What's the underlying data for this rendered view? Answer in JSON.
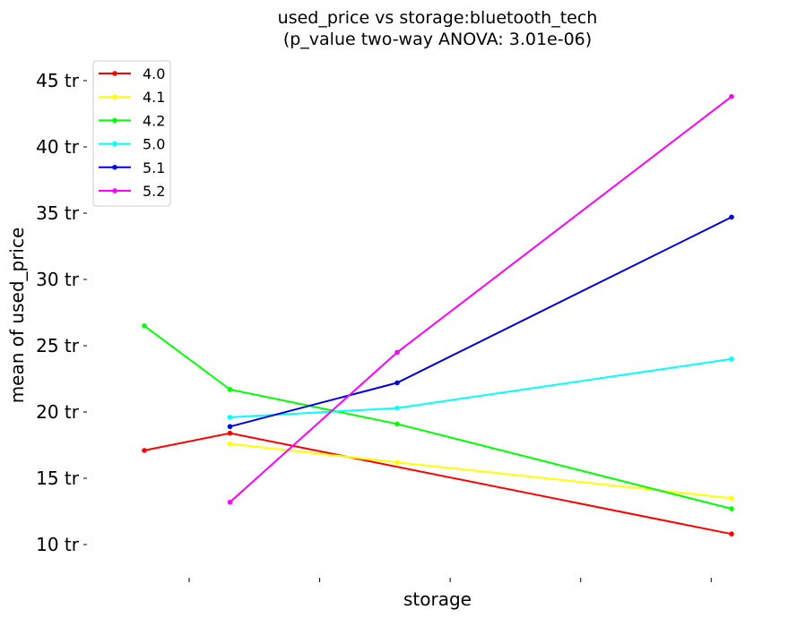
{
  "chart_data": {
    "type": "line",
    "title_line1": "used_price vs storage:bluetooth_tech",
    "title_line2": "(p_value two-way ANOVA: 3.01e-06)",
    "xlabel": "storage",
    "ylabel": "mean of used_price",
    "y_tick_suffix": " tr",
    "y_ticks": [
      10,
      15,
      20,
      25,
      30,
      35,
      40,
      45
    ],
    "y_tick_labels": [
      "10 tr",
      "15 tr",
      "20 tr",
      "25 tr",
      "30 tr",
      "35 tr",
      "40 tr",
      "45 tr"
    ],
    "ylim": [
      7.3,
      47.0
    ],
    "xlim": [
      0,
      7.3
    ],
    "x_ticks": [
      0.55,
      2.15,
      3.75,
      5.35,
      6.95
    ],
    "grid": false,
    "legend_position": "top-left",
    "series": [
      {
        "name": "4.0",
        "color": "#ff0000",
        "points": [
          [
            0,
            17.1
          ],
          [
            1.05,
            18.4
          ],
          [
            7.2,
            10.8
          ]
        ]
      },
      {
        "name": "4.1",
        "color": "#ffff00",
        "points": [
          [
            1.05,
            17.6
          ],
          [
            3.1,
            16.2
          ],
          [
            7.2,
            13.5
          ]
        ]
      },
      {
        "name": "4.2",
        "color": "#00ff00",
        "points": [
          [
            0,
            26.5
          ],
          [
            1.05,
            21.7
          ],
          [
            3.1,
            19.1
          ],
          [
            7.2,
            12.7
          ]
        ]
      },
      {
        "name": "5.0",
        "color": "#00ffff",
        "points": [
          [
            1.05,
            19.6
          ],
          [
            3.1,
            20.3
          ],
          [
            7.2,
            24.0
          ]
        ]
      },
      {
        "name": "5.1",
        "color": "#0000e0",
        "points": [
          [
            1.05,
            18.9
          ],
          [
            3.1,
            22.2
          ],
          [
            7.2,
            34.7
          ]
        ]
      },
      {
        "name": "5.2",
        "color": "#ff00ff",
        "points": [
          [
            1.05,
            13.2
          ],
          [
            3.1,
            24.5
          ],
          [
            7.2,
            43.8
          ]
        ]
      }
    ]
  }
}
